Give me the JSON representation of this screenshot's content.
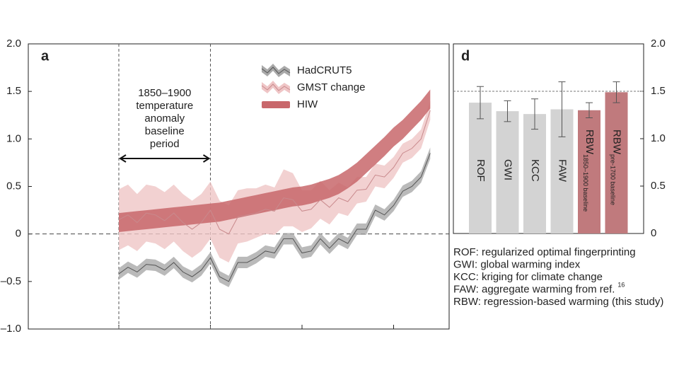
{
  "chart_data": [
    {
      "type": "line",
      "panel_label": "a",
      "categories": [
        null,
        null,
        null,
        null,
        null,
        null,
        null,
        null,
        null,
        null,
        null,
        null,
        null,
        null,
        null,
        null,
        null,
        null,
        null,
        null,
        null,
        null,
        null,
        null,
        null,
        null,
        null,
        null,
        null,
        null,
        null,
        null,
        null,
        null,
        null
      ],
      "ylim": [
        -1,
        2
      ],
      "yticks": [
        {
          "value": -1,
          "label": "–1.0"
        },
        {
          "value": -0.5,
          "label": "–0.5"
        },
        0,
        0.5,
        {
          "value": 1,
          "label": "1.0"
        },
        1.5,
        {
          "value": 2,
          "label": "2.0"
        }
      ],
      "zero_line": 0,
      "annotation": [
        "1850–1900",
        "temperature",
        "anomaly",
        "baseline",
        "period"
      ],
      "series": [
        {
          "name": "GMST change",
          "color": "#c98a8d",
          "band_color": "#efc5c6",
          "values": [
            0.15,
            0.2,
            0.12,
            0.22,
            0.2,
            0.14,
            0.22,
            0.12,
            0.05,
            0.12,
            0.25,
            0.05,
            0.0,
            0.18,
            0.2,
            0.22,
            0.26,
            0.24,
            0.38,
            0.36,
            0.24,
            0.26,
            0.36,
            0.28,
            0.38,
            0.34,
            0.46,
            0.47,
            0.62,
            0.6,
            0.7,
            0.85,
            0.9,
            1.0,
            1.3
          ],
          "error": [
            0.32,
            0.32,
            0.3,
            0.3,
            0.3,
            0.3,
            0.3,
            0.3,
            0.3,
            0.3,
            0.3,
            0.3,
            0.3,
            0.28,
            0.28,
            0.26,
            0.26,
            0.25,
            0.3,
            0.28,
            0.22,
            0.2,
            0.2,
            0.18,
            0.16,
            0.15,
            0.14,
            0.13,
            0.12,
            0.12,
            0.11,
            0.1,
            0.1,
            0.1,
            0.1
          ]
        },
        {
          "name": "HIW",
          "color": "#c8676b",
          "band_color": "#c8676b",
          "values": [
            0.12,
            0.13,
            0.14,
            0.15,
            0.16,
            0.17,
            0.18,
            0.19,
            0.2,
            0.21,
            0.22,
            0.23,
            0.25,
            0.27,
            0.29,
            0.31,
            0.33,
            0.35,
            0.37,
            0.39,
            0.4,
            0.42,
            0.45,
            0.48,
            0.52,
            0.58,
            0.65,
            0.74,
            0.83,
            0.92,
            1.02,
            1.1,
            1.2,
            1.3,
            1.42
          ],
          "error": 0.1
        },
        {
          "name": "HadCRUT5",
          "color": "#555555",
          "band_color": "#a9a9a9",
          "values": [
            -0.42,
            -0.35,
            -0.4,
            -0.32,
            -0.33,
            -0.38,
            -0.3,
            -0.4,
            -0.45,
            -0.38,
            -0.25,
            -0.45,
            -0.5,
            -0.3,
            -0.3,
            -0.25,
            -0.18,
            -0.2,
            -0.05,
            -0.05,
            -0.2,
            -0.18,
            -0.05,
            -0.15,
            -0.05,
            -0.1,
            0.05,
            0.05,
            0.25,
            0.2,
            0.3,
            0.45,
            0.5,
            0.6,
            0.85
          ],
          "error": 0.06
        }
      ]
    },
    {
      "type": "bar",
      "panel_label": "d",
      "categories": [
        "ROF",
        "GWI",
        "KCC",
        "FAW",
        "RBW",
        "RBW"
      ],
      "category_subscripts": [
        null,
        null,
        null,
        null,
        "1850–1900 baseline",
        "pre-1700 baseline"
      ],
      "values": [
        1.38,
        1.29,
        1.26,
        1.31,
        1.3,
        1.49
      ],
      "error": [
        0.17,
        0.11,
        0.16,
        0.29,
        0.08,
        0.11
      ],
      "colors": [
        "#d3d3d3",
        "#d3d3d3",
        "#d3d3d3",
        "#d3d3d3",
        "#c07a7d",
        "#c07a7d"
      ],
      "ylim": [
        0,
        2
      ],
      "yticks": [
        0,
        0.5,
        {
          "value": 1,
          "label": "1.0"
        },
        1.5,
        {
          "value": 2,
          "label": "2.0"
        }
      ],
      "reference_line": 1.5,
      "notes": [
        {
          "text": "ROF: regularized optimal fingerprinting"
        },
        {
          "text": "GWI: global warming index"
        },
        {
          "text": "KCC: kriging for climate change"
        },
        {
          "text": "FAW: aggregate warming from ref.",
          "ref": "16"
        },
        {
          "text": "RBW: regression-based warming (this study)"
        }
      ]
    }
  ]
}
